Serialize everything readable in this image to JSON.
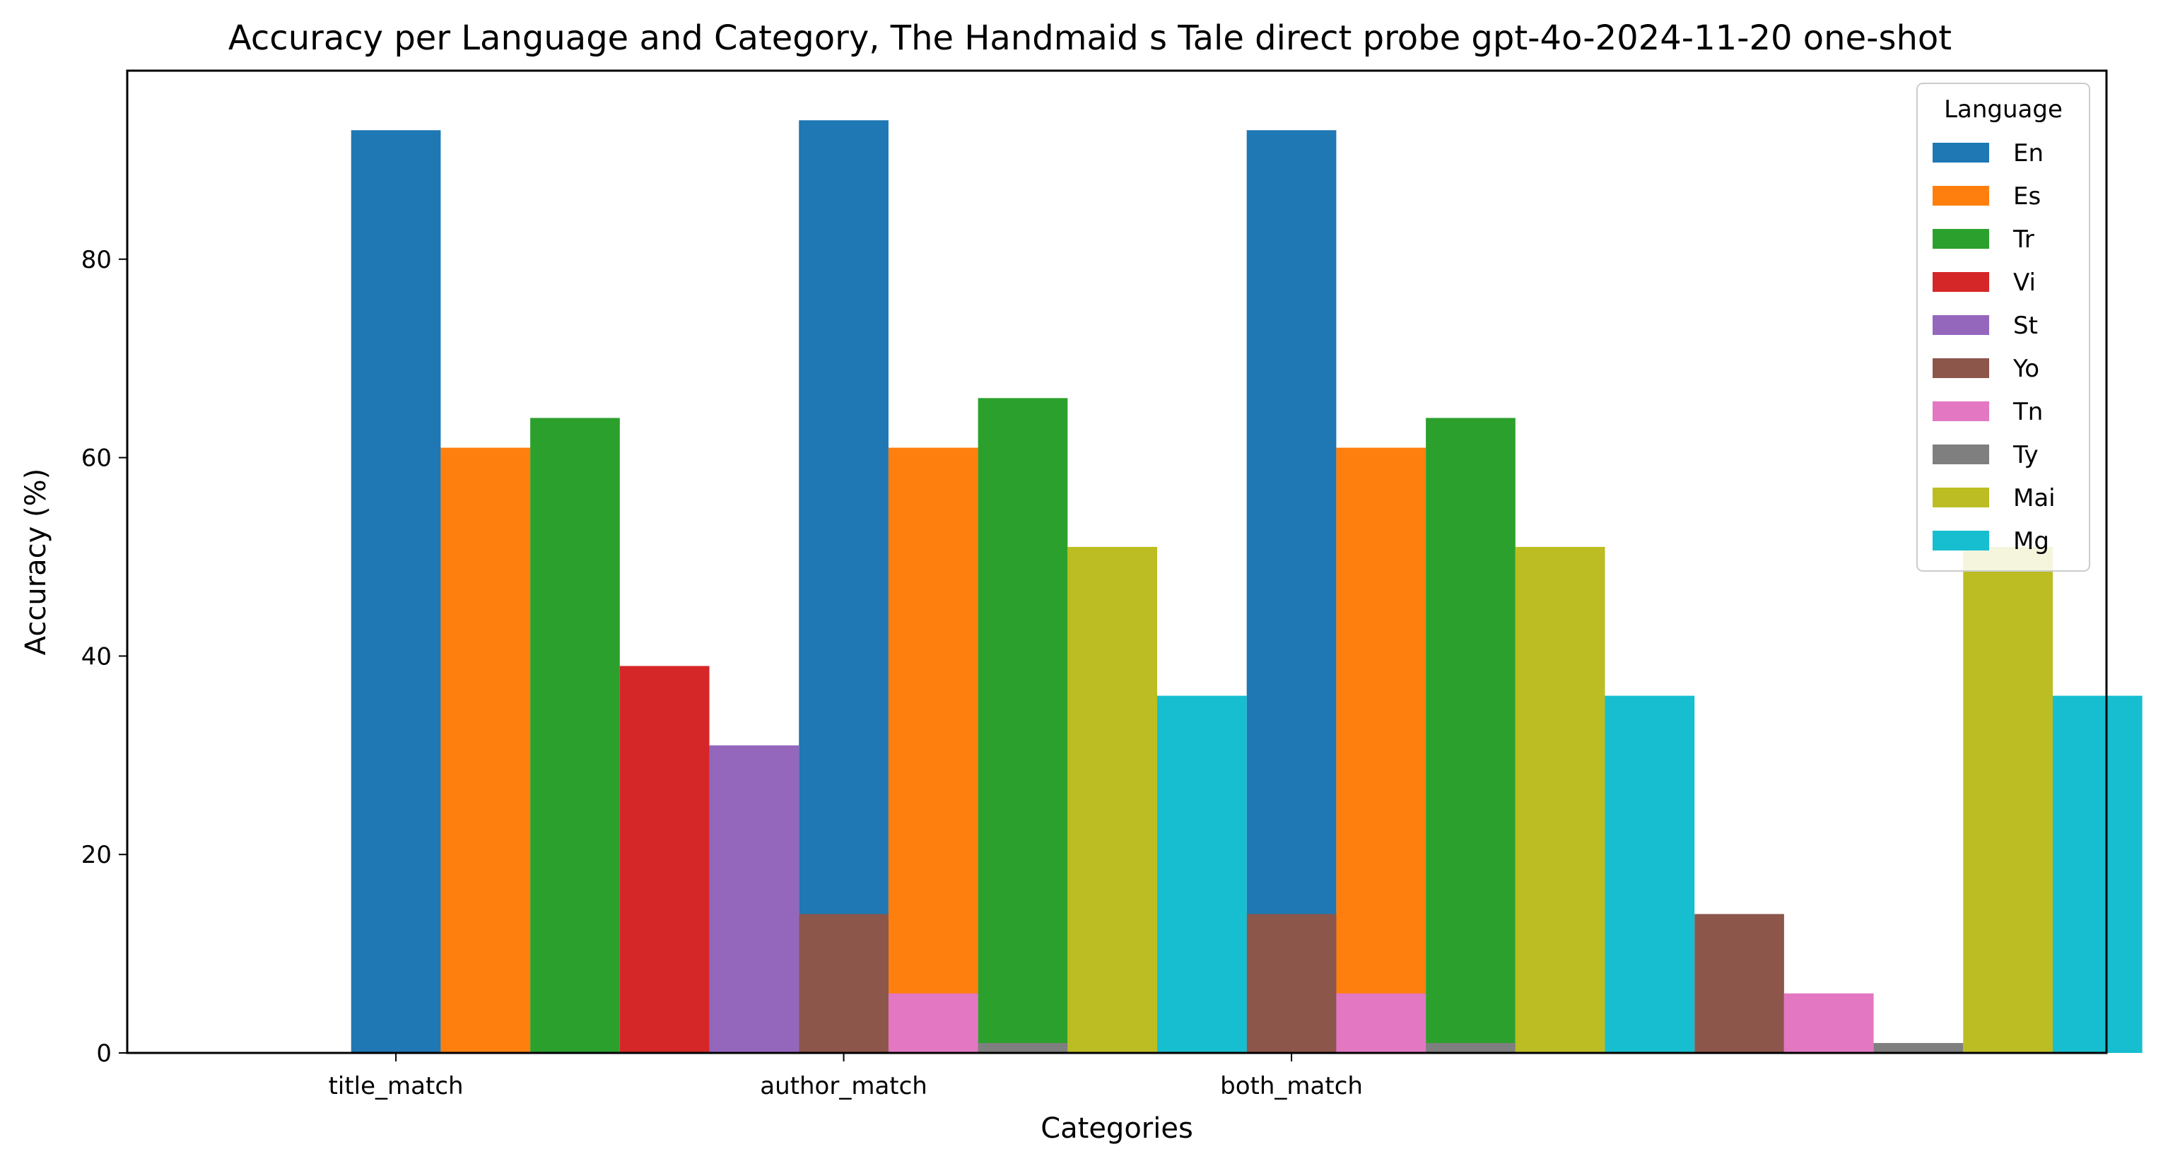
{
  "chart_data": {
    "type": "bar",
    "title": "Accuracy per Language and Category, The Handmaid s Tale direct probe gpt-4o-2024-11-20 one-shot",
    "xlabel": "Categories",
    "ylabel": "Accuracy (%)",
    "categories": [
      "title_match",
      "author_match",
      "both_match"
    ],
    "ylim": [
      0,
      99
    ],
    "yticks": [
      0,
      20,
      40,
      60,
      80
    ],
    "grid": false,
    "legend": {
      "title": "Language",
      "placement": "top-right"
    },
    "series": [
      {
        "name": "En",
        "color": "#1f77b4",
        "values": [
          93,
          94,
          93
        ]
      },
      {
        "name": "Es",
        "color": "#ff7f0e",
        "values": [
          61,
          61,
          61
        ]
      },
      {
        "name": "Tr",
        "color": "#2ca02c",
        "values": [
          64,
          66,
          64
        ]
      },
      {
        "name": "Vi",
        "color": "#d62728",
        "values": [
          39,
          0,
          0
        ]
      },
      {
        "name": "St",
        "color": "#9467bd",
        "values": [
          31,
          0,
          0
        ]
      },
      {
        "name": "Yo",
        "color": "#8c564b",
        "values": [
          14,
          14,
          14
        ]
      },
      {
        "name": "Tn",
        "color": "#e377c2",
        "values": [
          6,
          6,
          6
        ]
      },
      {
        "name": "Ty",
        "color": "#7f7f7f",
        "values": [
          1,
          1,
          1
        ]
      },
      {
        "name": "Mai",
        "color": "#bcbd22",
        "values": [
          51,
          51,
          51
        ]
      },
      {
        "name": "Mg",
        "color": "#17becf",
        "values": [
          36,
          36,
          36
        ]
      }
    ]
  }
}
